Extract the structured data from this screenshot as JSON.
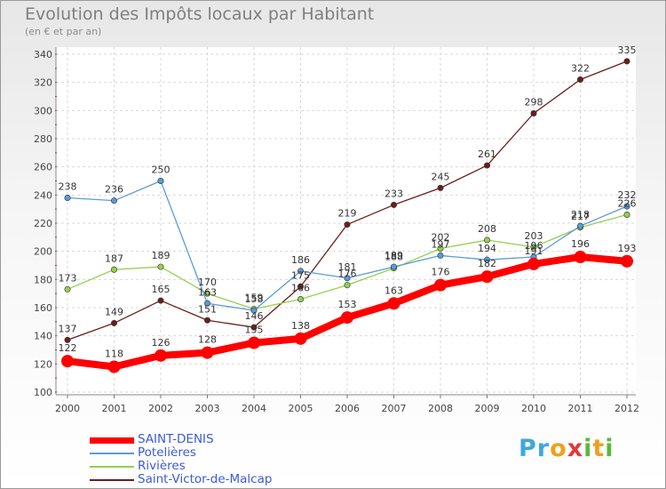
{
  "title": "Evolution des Impôts locaux par Habitant",
  "subtitle": "(en € et par an)",
  "logo": "Proxiti",
  "chart_data": {
    "type": "line",
    "title": "Evolution des Impôts locaux par Habitant",
    "subtitle": "(en € et par an)",
    "xlabel": "",
    "ylabel": "",
    "x": [
      "2000",
      "2001",
      "2002",
      "2003",
      "2004",
      "2005",
      "2006",
      "2007",
      "2008",
      "2009",
      "2010",
      "2011",
      "2012"
    ],
    "ylim": [
      100,
      340
    ],
    "yticks": [
      100,
      120,
      140,
      160,
      180,
      200,
      220,
      240,
      260,
      280,
      300,
      320,
      340
    ],
    "grid": true,
    "legend_position": "bottom-left",
    "series": [
      {
        "name": "SAINT-DENIS",
        "color": "#ff0000",
        "values": [
          122,
          118,
          126,
          128,
          135,
          138,
          153,
          163,
          176,
          182,
          191,
          196,
          193
        ],
        "labels": [
          "122",
          "118",
          "126",
          "128",
          "135",
          "138",
          "153",
          "163",
          "176",
          "182",
          "191",
          "196",
          "193"
        ]
      },
      {
        "name": "Potelières",
        "color": "#5b9bd5",
        "values": [
          238,
          236,
          250,
          163,
          158,
          186,
          181,
          189,
          197,
          194,
          196,
          218,
          232
        ],
        "labels": [
          "238",
          "236",
          "250",
          "163",
          "158",
          "186",
          "181",
          "189",
          "197",
          "194",
          "196",
          "218",
          "232"
        ]
      },
      {
        "name": "Rivières",
        "color": "#92d050",
        "values": [
          173,
          187,
          189,
          170,
          159,
          166,
          176,
          188,
          202,
          208,
          203,
          217,
          226
        ],
        "labels": [
          "173",
          "187",
          "189",
          "170",
          "159",
          "166",
          "176",
          "188",
          "202",
          "208",
          "203",
          "217",
          "226"
        ]
      },
      {
        "name": "Saint-Victor-de-Malcap",
        "color": "#6b1d1d",
        "values": [
          137,
          149,
          165,
          151,
          146,
          175,
          219,
          233,
          245,
          261,
          298,
          322,
          335
        ],
        "labels": [
          "137",
          "149",
          "165",
          "151",
          "146",
          "175",
          "219",
          "233",
          "245",
          "261",
          "298",
          "322",
          "335"
        ]
      }
    ]
  }
}
